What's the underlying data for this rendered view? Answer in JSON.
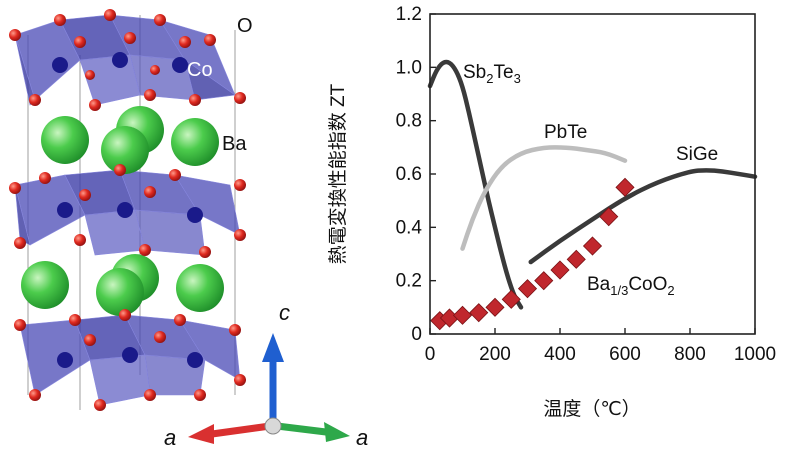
{
  "structure": {
    "labels": {
      "oxygen": "O",
      "cobalt": "Co",
      "barium": "Ba"
    },
    "axes": {
      "c": "c",
      "a1": "a",
      "a2": "a"
    },
    "colors": {
      "octahedron": "#4a4ab5",
      "oxygen": "#d92020",
      "cobalt": "#1a1a8a",
      "barium": "#3cb83c",
      "axis_c": "#1f5fd0",
      "axis_a1": "#d93030",
      "axis_a2": "#2ea84a"
    }
  },
  "chart_data": {
    "type": "line",
    "xlabel": "温度（℃）",
    "ylabel": "熱電変換性能指数 ZT",
    "xlim": [
      0,
      1000
    ],
    "ylim": [
      0,
      1.2
    ],
    "xticks": [
      "0",
      "200",
      "400",
      "600",
      "800",
      "1000"
    ],
    "yticks": [
      "0",
      "0.2",
      "0.4",
      "0.6",
      "0.8",
      "1.0",
      "1.2"
    ],
    "series": [
      {
        "name": "Sb2Te3",
        "label_main": "Sb",
        "label_sub1": "2",
        "label_mid": "Te",
        "label_sub2": "3",
        "color": "#3a3a3a",
        "x": [
          0,
          20,
          40,
          60,
          80,
          100,
          120,
          140,
          160,
          180,
          200,
          220,
          240,
          260,
          280
        ],
        "y": [
          0.93,
          0.99,
          1.02,
          1.02,
          0.99,
          0.93,
          0.83,
          0.72,
          0.61,
          0.5,
          0.4,
          0.3,
          0.21,
          0.14,
          0.1
        ]
      },
      {
        "name": "PbTe",
        "label_main": "PbTe",
        "color": "#bdbdbd",
        "x": [
          100,
          130,
          170,
          220,
          280,
          350,
          420,
          480,
          540,
          600
        ],
        "y": [
          0.32,
          0.43,
          0.54,
          0.63,
          0.68,
          0.7,
          0.7,
          0.69,
          0.68,
          0.65
        ]
      },
      {
        "name": "SiGe",
        "label_main": "SiGe",
        "color": "#3a3a3a",
        "x": [
          310,
          400,
          500,
          600,
          700,
          800,
          850,
          900,
          950,
          1000
        ],
        "y": [
          0.27,
          0.35,
          0.43,
          0.51,
          0.57,
          0.61,
          0.615,
          0.61,
          0.6,
          0.59
        ]
      },
      {
        "name": "Ba1/3CoO2",
        "label_main": "Ba",
        "label_sub1": "1/3",
        "label_mid": "CoO",
        "label_sub2": "2",
        "color": "#c0272d",
        "marker": "diamond",
        "x": [
          30,
          60,
          100,
          150,
          200,
          250,
          300,
          350,
          400,
          450,
          500,
          550,
          600
        ],
        "y": [
          0.05,
          0.06,
          0.07,
          0.08,
          0.1,
          0.13,
          0.17,
          0.2,
          0.24,
          0.28,
          0.33,
          0.44,
          0.55
        ]
      }
    ]
  }
}
